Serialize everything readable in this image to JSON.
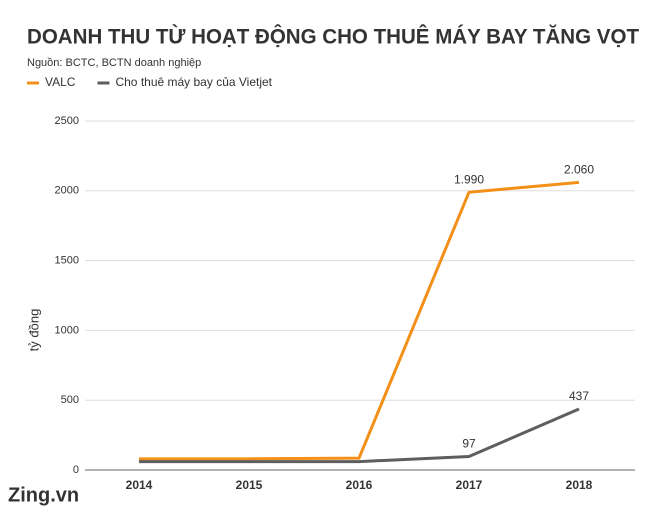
{
  "chart_data": {
    "type": "line",
    "title": "DOANH THU TỪ HOẠT ĐỘNG CHO THUÊ MÁY BAY TĂNG VỌT",
    "source": "Nguồn: BCTC, BCTN doanh nghiệp",
    "y_label": "tỷ đồng",
    "watermark": "Zing.vn",
    "categories": [
      "2014",
      "2015",
      "2016",
      "2017",
      "2018"
    ],
    "series": [
      {
        "name": "VALC",
        "color": "#f39019",
        "values": [
          80,
          80,
          85,
          1990,
          2060
        ],
        "value_labels": [
          null,
          null,
          null,
          "1.990",
          "2.060"
        ]
      },
      {
        "name": "Cho thuê máy bay của Vietjet",
        "color": "#5e5e5e",
        "values": [
          60,
          60,
          60,
          97,
          437
        ],
        "value_labels": [
          null,
          null,
          null,
          "97",
          "437"
        ]
      }
    ],
    "ylim": [
      0,
      2500
    ],
    "yticks": [
      0,
      500,
      1000,
      1500,
      2000,
      2500
    ],
    "grid": true,
    "legend": "top-left"
  }
}
